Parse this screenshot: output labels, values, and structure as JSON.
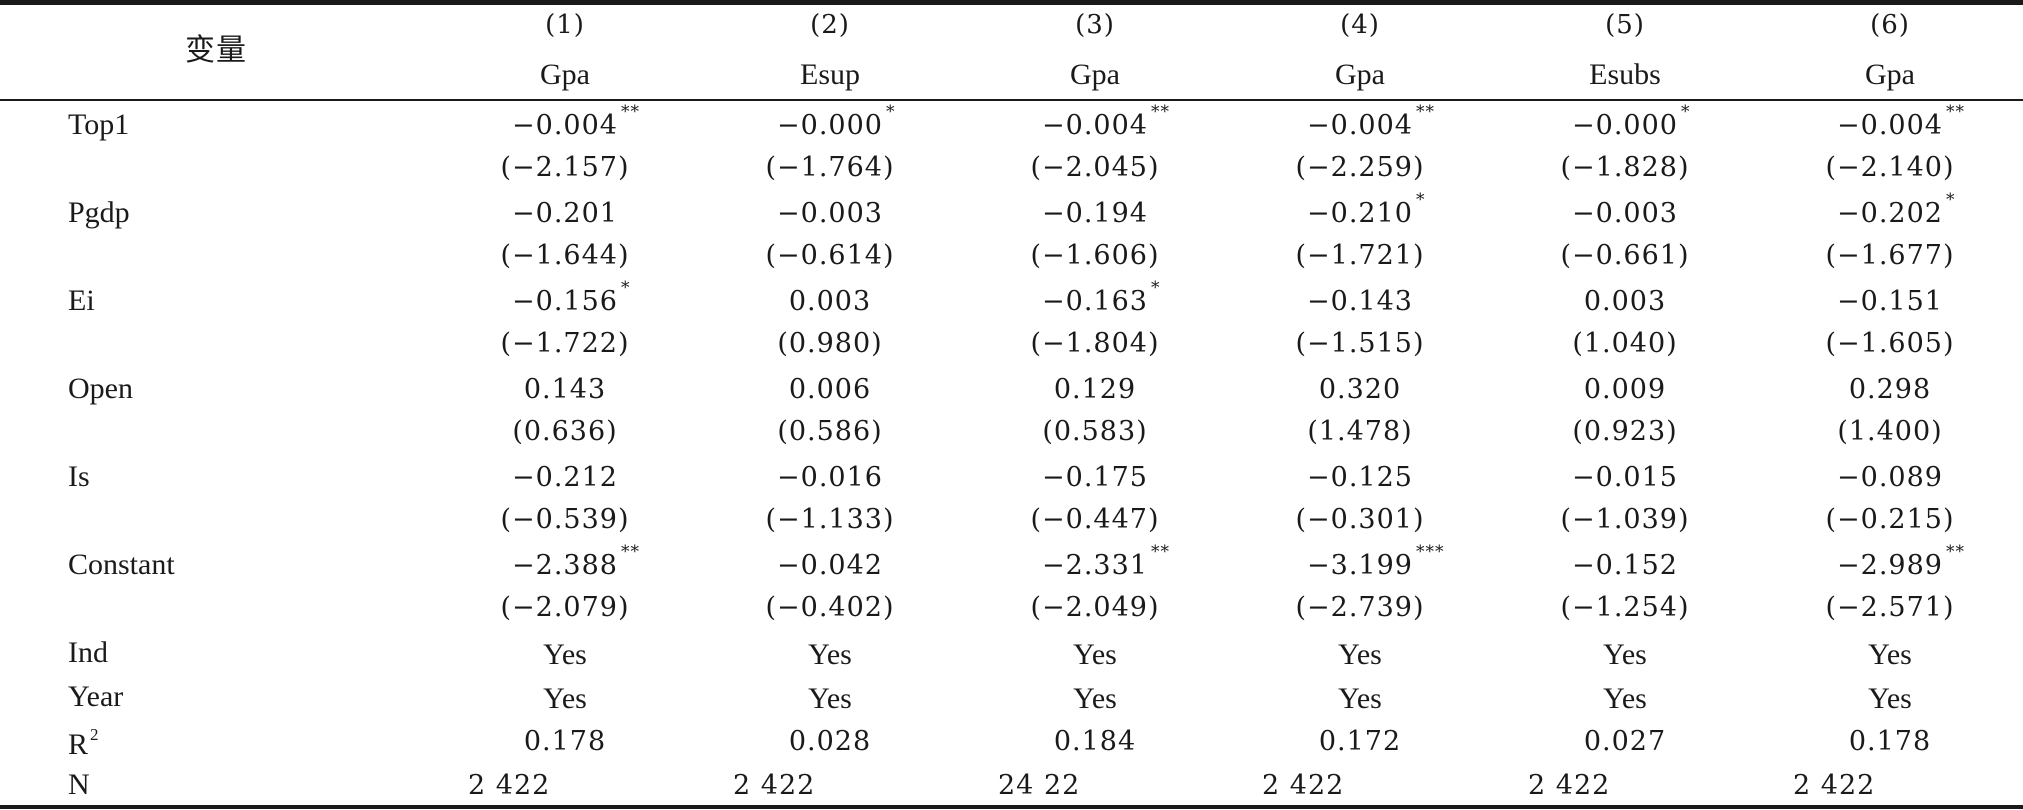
{
  "header": {
    "variable_label": "变量",
    "columns": [
      {
        "number": "(1)",
        "dependent": "Gpa"
      },
      {
        "number": "(2)",
        "dependent": "Esup"
      },
      {
        "number": "(3)",
        "dependent": "Gpa"
      },
      {
        "number": "(4)",
        "dependent": "Gpa"
      },
      {
        "number": "(5)",
        "dependent": "Esubs"
      },
      {
        "number": "(6)",
        "dependent": "Gpa"
      }
    ]
  },
  "rows": [
    {
      "label": "Top1",
      "coef": [
        {
          "v": "−0.004",
          "s": "**"
        },
        {
          "v": "−0.000",
          "s": "*"
        },
        {
          "v": "−0.004",
          "s": "**"
        },
        {
          "v": "−0.004",
          "s": "**"
        },
        {
          "v": "−0.000",
          "s": "*"
        },
        {
          "v": "−0.004",
          "s": "**"
        }
      ],
      "t": [
        "(−2.157)",
        "(−1.764)",
        "(−2.045)",
        "(−2.259)",
        "(−1.828)",
        "(−2.140)"
      ]
    },
    {
      "label": "Pgdp",
      "coef": [
        {
          "v": "−0.201",
          "s": ""
        },
        {
          "v": "−0.003",
          "s": ""
        },
        {
          "v": "−0.194",
          "s": ""
        },
        {
          "v": "−0.210",
          "s": "*"
        },
        {
          "v": "−0.003",
          "s": ""
        },
        {
          "v": "−0.202",
          "s": "*"
        }
      ],
      "t": [
        "(−1.644)",
        "(−0.614)",
        "(−1.606)",
        "(−1.721)",
        "(−0.661)",
        "(−1.677)"
      ]
    },
    {
      "label": "Ei",
      "coef": [
        {
          "v": "−0.156",
          "s": "*"
        },
        {
          "v": "0.003",
          "s": ""
        },
        {
          "v": "−0.163",
          "s": "*"
        },
        {
          "v": "−0.143",
          "s": ""
        },
        {
          "v": "0.003",
          "s": ""
        },
        {
          "v": "−0.151",
          "s": ""
        }
      ],
      "t": [
        "(−1.722)",
        "(0.980)",
        "(−1.804)",
        "(−1.515)",
        "(1.040)",
        "(−1.605)"
      ]
    },
    {
      "label": "Open",
      "coef": [
        {
          "v": "0.143",
          "s": ""
        },
        {
          "v": "0.006",
          "s": ""
        },
        {
          "v": "0.129",
          "s": ""
        },
        {
          "v": "0.320",
          "s": ""
        },
        {
          "v": "0.009",
          "s": ""
        },
        {
          "v": "0.298",
          "s": ""
        }
      ],
      "t": [
        "(0.636)",
        "(0.586)",
        "(0.583)",
        "(1.478)",
        "(0.923)",
        "(1.400)"
      ]
    },
    {
      "label": "Is",
      "coef": [
        {
          "v": "−0.212",
          "s": ""
        },
        {
          "v": "−0.016",
          "s": ""
        },
        {
          "v": "−0.175",
          "s": ""
        },
        {
          "v": "−0.125",
          "s": ""
        },
        {
          "v": "−0.015",
          "s": ""
        },
        {
          "v": "−0.089",
          "s": ""
        }
      ],
      "t": [
        "(−0.539)",
        "(−1.133)",
        "(−0.447)",
        "(−0.301)",
        "(−1.039)",
        "(−0.215)"
      ]
    },
    {
      "label": "Constant",
      "coef": [
        {
          "v": "−2.388",
          "s": "**"
        },
        {
          "v": "−0.042",
          "s": ""
        },
        {
          "v": "−2.331",
          "s": "**"
        },
        {
          "v": "−3.199",
          "s": "***"
        },
        {
          "v": "−0.152",
          "s": ""
        },
        {
          "v": "−2.989",
          "s": "**"
        }
      ],
      "t": [
        "(−2.079)",
        "(−0.402)",
        "(−2.049)",
        "(−2.739)",
        "(−1.254)",
        "(−2.571)"
      ]
    }
  ],
  "controls": [
    {
      "label": "Ind",
      "values": [
        "Yes",
        "Yes",
        "Yes",
        "Yes",
        "Yes",
        "Yes"
      ]
    },
    {
      "label": "Year",
      "values": [
        "Yes",
        "Yes",
        "Yes",
        "Yes",
        "Yes",
        "Yes"
      ]
    }
  ],
  "r2": {
    "label_base": "R",
    "label_sup": "2",
    "values": [
      "0.178",
      "0.028",
      "0.184",
      "0.172",
      "0.027",
      "0.178"
    ]
  },
  "n": {
    "label": "N",
    "values": [
      "2 422",
      "2 422",
      "24 22",
      "2 422",
      "2 422",
      "2 422"
    ]
  }
}
